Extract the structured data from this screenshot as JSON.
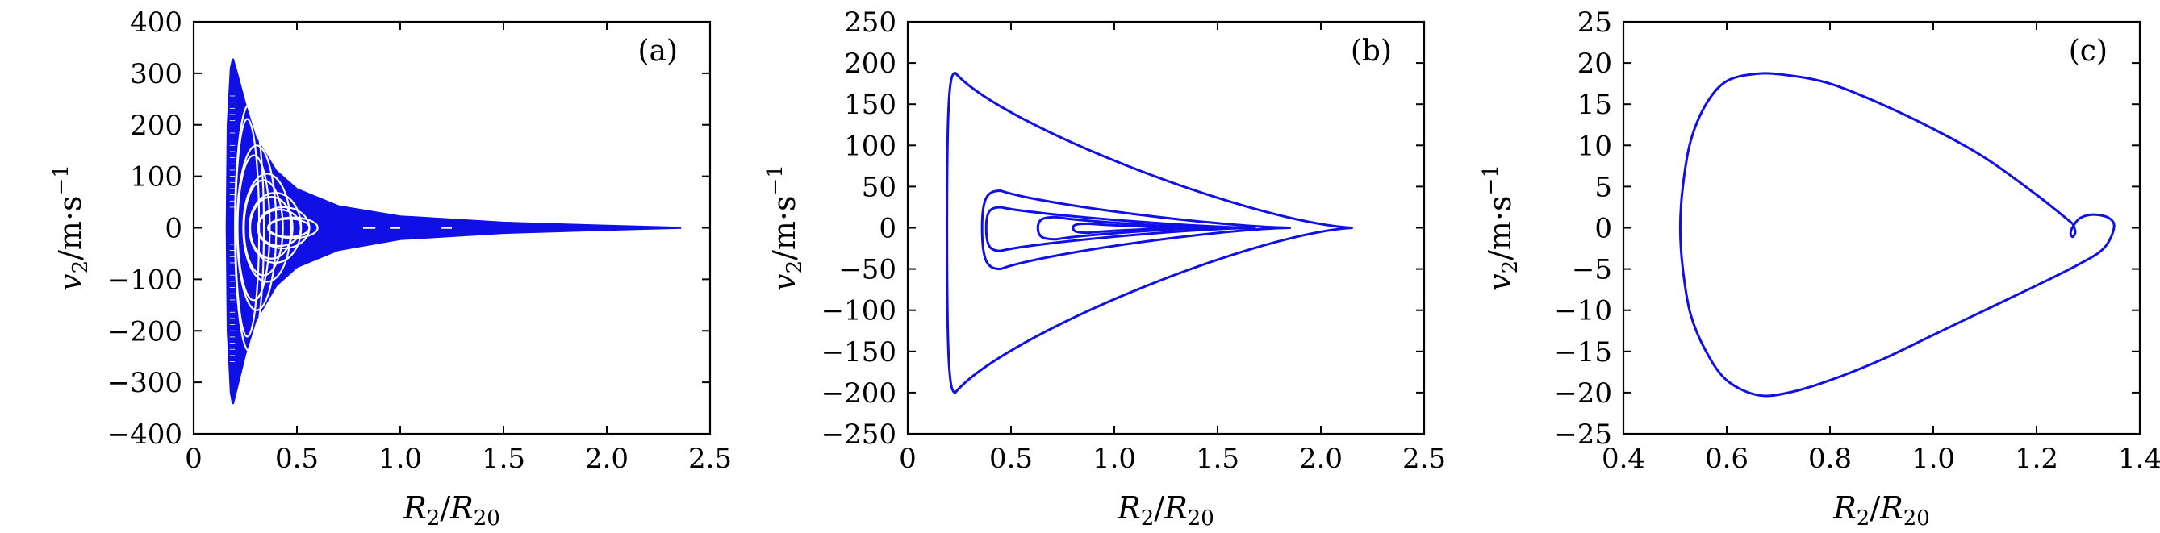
{
  "chart_data": [
    {
      "type": "line",
      "panel_label": "(a)",
      "xlabel_main": "R",
      "xlabel_sub1": "2",
      "xlabel_div": "/R",
      "xlabel_sub2": "20",
      "ylabel_main": "v",
      "ylabel_sub": "2",
      "ylabel_unit": "/m·s",
      "ylabel_sup": "−1",
      "xlim": [
        0,
        2.5
      ],
      "ylim": [
        -400,
        400
      ],
      "xticks": [
        0,
        0.5,
        1.0,
        1.5,
        2.0,
        2.5
      ],
      "xtick_labels": [
        "0",
        "0.5",
        "1.0",
        "1.5",
        "2.0",
        "2.5"
      ],
      "yticks": [
        400,
        300,
        200,
        100,
        0,
        -100,
        -200,
        -300,
        -400
      ],
      "ytick_labels": [
        "400",
        "300",
        "200",
        "100",
        "0",
        "−100",
        "−200",
        "−300",
        "−400"
      ],
      "envelope_upper": [
        [
          0.16,
          0
        ],
        [
          0.165,
          200
        ],
        [
          0.18,
          310
        ],
        [
          0.19,
          328
        ],
        [
          0.21,
          300
        ],
        [
          0.25,
          240
        ],
        [
          0.3,
          175
        ],
        [
          0.4,
          110
        ],
        [
          0.5,
          75
        ],
        [
          0.7,
          42
        ],
        [
          1.0,
          22
        ],
        [
          1.5,
          10
        ],
        [
          2.0,
          4
        ],
        [
          2.36,
          0
        ]
      ],
      "envelope_lower": [
        [
          0.16,
          0
        ],
        [
          0.165,
          -200
        ],
        [
          0.18,
          -320
        ],
        [
          0.19,
          -342
        ],
        [
          0.21,
          -310
        ],
        [
          0.25,
          -245
        ],
        [
          0.3,
          -180
        ],
        [
          0.4,
          -112
        ],
        [
          0.5,
          -76
        ],
        [
          0.7,
          -43
        ],
        [
          1.0,
          -22
        ],
        [
          1.5,
          -10
        ],
        [
          2.0,
          -4
        ],
        [
          2.36,
          0
        ]
      ],
      "inner_loops": [
        {
          "xmin": 0.2,
          "xmax": 0.34,
          "vmax": 240
        },
        {
          "xmin": 0.21,
          "xmax": 0.4,
          "vmax": 160
        },
        {
          "xmin": 0.24,
          "xmax": 0.47,
          "vmax": 105
        },
        {
          "xmin": 0.27,
          "xmax": 0.52,
          "vmax": 68
        },
        {
          "xmin": 0.31,
          "xmax": 0.56,
          "vmax": 40
        },
        {
          "xmin": 0.36,
          "xmax": 0.6,
          "vmax": 20
        }
      ],
      "gaps_on_axis": [
        [
          0.82,
          0.88
        ],
        [
          0.95,
          1.0
        ],
        [
          1.2,
          1.25
        ]
      ]
    },
    {
      "type": "line",
      "panel_label": "(b)",
      "xlabel_main": "R",
      "xlabel_sub1": "2",
      "xlabel_div": "/R",
      "xlabel_sub2": "20",
      "ylabel_main": "v",
      "ylabel_sub": "2",
      "ylabel_unit": "/m·s",
      "ylabel_sup": "−1",
      "xlim": [
        0,
        2.5
      ],
      "ylim": [
        -250,
        250
      ],
      "xticks": [
        0,
        0.5,
        1.0,
        1.5,
        2.0,
        2.5
      ],
      "xtick_labels": [
        "0",
        "0.5",
        "1.0",
        "1.5",
        "2.0",
        "2.5"
      ],
      "yticks": [
        250,
        200,
        150,
        100,
        50,
        0,
        -50,
        -100,
        -150,
        -200,
        -250
      ],
      "ytick_labels": [
        "250",
        "200",
        "150",
        "100",
        "50",
        "0",
        "−50",
        "−100",
        "−150",
        "−200",
        "−250"
      ],
      "loops": [
        {
          "xmin": 0.19,
          "xmax": 2.15,
          "vtop": 188,
          "vbot": -200,
          "peak_x": 0.23
        },
        {
          "xmin": 0.36,
          "xmax": 1.85,
          "vtop": 45,
          "vbot": -50,
          "peak_x": 0.45
        },
        {
          "xmin": 0.38,
          "xmax": 1.68,
          "vtop": 25,
          "vbot": -28,
          "peak_x": 0.45
        },
        {
          "xmin": 0.63,
          "xmax": 1.5,
          "vtop": 13,
          "vbot": -14,
          "peak_x": 0.72
        },
        {
          "xmin": 0.8,
          "xmax": 1.38,
          "vtop": 5,
          "vbot": -6,
          "peak_x": 0.88
        }
      ]
    },
    {
      "type": "line",
      "panel_label": "(c)",
      "xlabel_main": "R",
      "xlabel_sub1": "2",
      "xlabel_div": "/R",
      "xlabel_sub2": "20",
      "ylabel_main": "v",
      "ylabel_sub": "2",
      "ylabel_unit": "/m·s",
      "ylabel_sup": "−1",
      "xlim": [
        0.4,
        1.4
      ],
      "ylim": [
        -25,
        25
      ],
      "xticks": [
        0.4,
        0.6,
        0.8,
        1.0,
        1.2,
        1.4
      ],
      "xtick_labels": [
        "0.4",
        "0.6",
        "0.8",
        "1.0",
        "1.2",
        "1.4"
      ],
      "yticks": [
        25,
        20,
        15,
        10,
        5,
        0,
        -5,
        -10,
        -15,
        -20,
        -25
      ],
      "ytick_labels": [
        "25",
        "20",
        "15",
        "10",
        "5",
        "0",
        "−5",
        "−10",
        "−15",
        "−20",
        "−25"
      ],
      "points": [
        [
          1.27,
          0.5
        ],
        [
          1.2,
          4.0
        ],
        [
          1.1,
          8.5
        ],
        [
          1.0,
          12.0
        ],
        [
          0.9,
          15.0
        ],
        [
          0.8,
          17.5
        ],
        [
          0.72,
          18.5
        ],
        [
          0.66,
          18.7
        ],
        [
          0.6,
          17.8
        ],
        [
          0.56,
          15.0
        ],
        [
          0.53,
          10.5
        ],
        [
          0.515,
          5.0
        ],
        [
          0.51,
          0.0
        ],
        [
          0.515,
          -5.0
        ],
        [
          0.53,
          -10.5
        ],
        [
          0.56,
          -15.0
        ],
        [
          0.6,
          -18.5
        ],
        [
          0.66,
          -20.3
        ],
        [
          0.72,
          -20.0
        ],
        [
          0.8,
          -18.5
        ],
        [
          0.9,
          -16.0
        ],
        [
          1.0,
          -13.0
        ],
        [
          1.1,
          -10.0
        ],
        [
          1.2,
          -7.0
        ],
        [
          1.28,
          -4.5
        ],
        [
          1.33,
          -2.5
        ],
        [
          1.35,
          0.0
        ],
        [
          1.34,
          1.2
        ],
        [
          1.31,
          1.6
        ],
        [
          1.285,
          1.2
        ],
        [
          1.272,
          0.3
        ],
        [
          1.266,
          -0.6
        ],
        [
          1.27,
          -1.1
        ],
        [
          1.275,
          -0.5
        ],
        [
          1.27,
          0.5
        ]
      ]
    }
  ]
}
